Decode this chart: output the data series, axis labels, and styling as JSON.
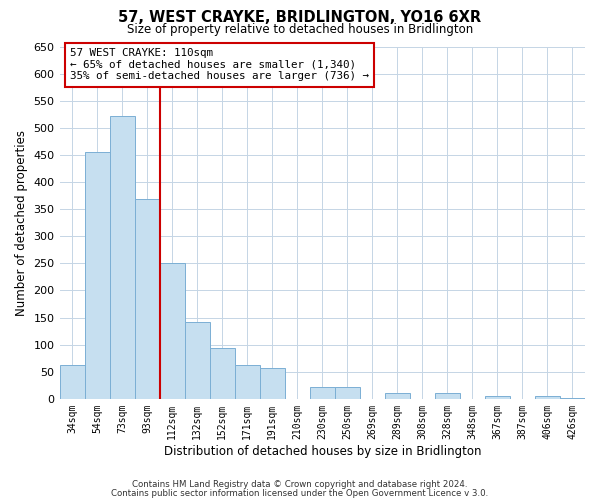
{
  "title": "57, WEST CRAYKE, BRIDLINGTON, YO16 6XR",
  "subtitle": "Size of property relative to detached houses in Bridlington",
  "xlabel": "Distribution of detached houses by size in Bridlington",
  "ylabel": "Number of detached properties",
  "categories": [
    "34sqm",
    "54sqm",
    "73sqm",
    "93sqm",
    "112sqm",
    "132sqm",
    "152sqm",
    "171sqm",
    "191sqm",
    "210sqm",
    "230sqm",
    "250sqm",
    "269sqm",
    "289sqm",
    "308sqm",
    "328sqm",
    "348sqm",
    "367sqm",
    "387sqm",
    "406sqm",
    "426sqm"
  ],
  "values": [
    62,
    456,
    522,
    368,
    250,
    141,
    93,
    62,
    57,
    0,
    22,
    22,
    0,
    10,
    0,
    10,
    0,
    5,
    0,
    5,
    2
  ],
  "bar_color": "#c6dff0",
  "bar_edge_color": "#7bafd4",
  "vline_color": "#cc0000",
  "vline_index": 4,
  "annotation_title": "57 WEST CRAYKE: 110sqm",
  "annotation_line1": "← 65% of detached houses are smaller (1,340)",
  "annotation_line2": "35% of semi-detached houses are larger (736) →",
  "annotation_box_color": "#cc0000",
  "ylim": [
    0,
    650
  ],
  "yticks": [
    0,
    50,
    100,
    150,
    200,
    250,
    300,
    350,
    400,
    450,
    500,
    550,
    600,
    650
  ],
  "footer1": "Contains HM Land Registry data © Crown copyright and database right 2024.",
  "footer2": "Contains public sector information licensed under the Open Government Licence v 3.0.",
  "background_color": "#ffffff",
  "grid_color": "#c5d5e5"
}
